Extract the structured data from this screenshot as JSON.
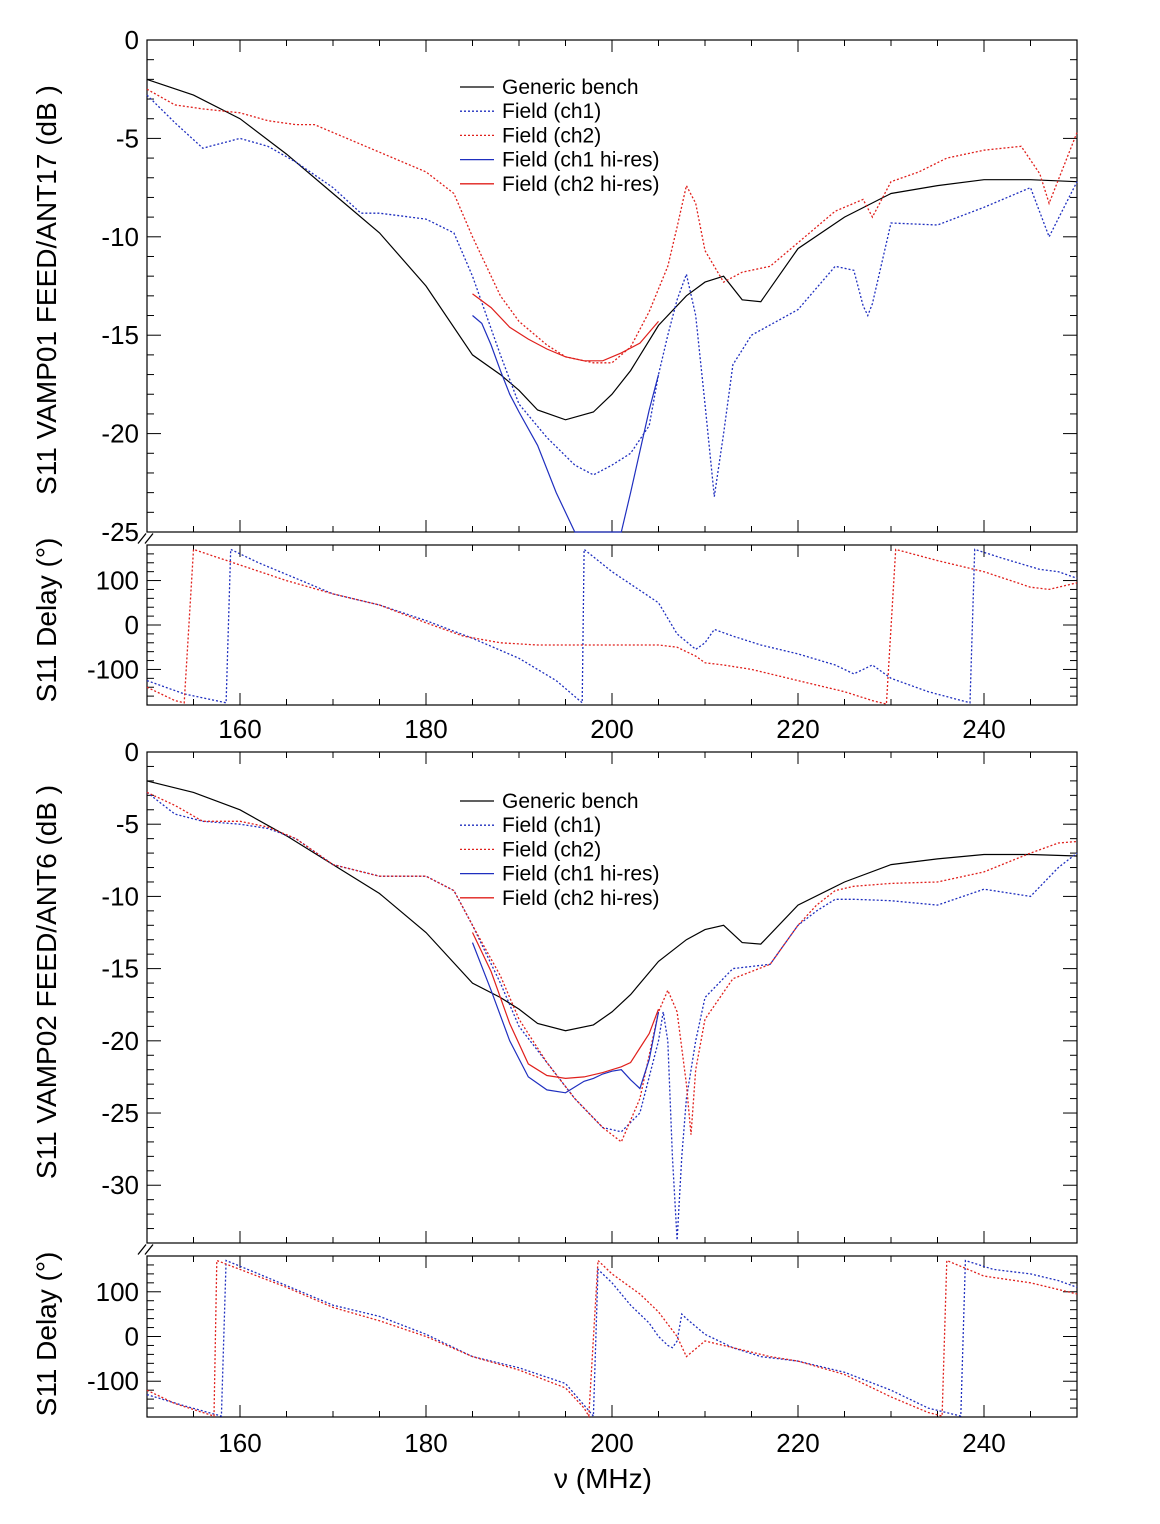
{
  "figure": {
    "xlabel": "ν (MHz)",
    "x_tick_labels": [
      "160",
      "180",
      "200",
      "220",
      "240"
    ],
    "colors": {
      "bench": "#000000",
      "ch1": "#1f2fbf",
      "ch2": "#e0201c"
    }
  },
  "chart_data": [
    {
      "type": "line",
      "panel": "top",
      "ylabel_mag": "S11 VAMP01 FEED/ANT17 (dB )",
      "ylabel_phase": "S11 Delay (°)",
      "xlim": [
        150,
        250
      ],
      "mag_ylim": [
        -25,
        0
      ],
      "mag_ticks": [
        0,
        -5,
        -10,
        -15,
        -20,
        -25
      ],
      "mag_tick_labels": [
        "0",
        "-5",
        "-10",
        "-15",
        "-20",
        "-25"
      ],
      "phase_ylim": [
        -180,
        180
      ],
      "phase_ticks": [
        100,
        0,
        -100
      ],
      "phase_tick_labels": [
        "100",
        "0",
        "-100"
      ],
      "legend": [
        "Generic bench",
        "Field (ch1)",
        "Field  (ch2)",
        "Field (ch1 hi-res)",
        "Field (ch2 hi-res)"
      ],
      "magnitude_series": [
        {
          "name": "Generic bench",
          "style": "solid",
          "color": "bench",
          "x": [
            150,
            155,
            160,
            165,
            170,
            175,
            180,
            185,
            188,
            190,
            192,
            195,
            198,
            200,
            202,
            205,
            208,
            210,
            212,
            214,
            216,
            220,
            225,
            230,
            235,
            240,
            245,
            250
          ],
          "y": [
            -2,
            -2.8,
            -4,
            -5.8,
            -7.8,
            -9.8,
            -12.5,
            -16,
            -17,
            -17.8,
            -18.8,
            -19.3,
            -18.9,
            -18,
            -16.8,
            -14.5,
            -13,
            -12.3,
            -12,
            -13.2,
            -13.3,
            -10.6,
            -9,
            -7.8,
            -7.4,
            -7.1,
            -7.1,
            -7.2
          ]
        },
        {
          "name": "Field (ch1)",
          "style": "dotted",
          "color": "ch1",
          "x": [
            150,
            153,
            156,
            160,
            163,
            166,
            170,
            173,
            175,
            180,
            183,
            185,
            188,
            190,
            193,
            196,
            198,
            200,
            202,
            204,
            205,
            206,
            207,
            208,
            209,
            210,
            211,
            212,
            213,
            215,
            220,
            224,
            226,
            227,
            227.5,
            228,
            230,
            235,
            240,
            245,
            247,
            250
          ],
          "y": [
            -2.8,
            -4.2,
            -5.5,
            -5,
            -5.4,
            -6.2,
            -7.5,
            -8.8,
            -8.8,
            -9.1,
            -9.8,
            -12,
            -16,
            -18.5,
            -20.2,
            -21.6,
            -22.1,
            -21.6,
            -21,
            -19.6,
            -17,
            -15,
            -13.2,
            -11.9,
            -14,
            -18.5,
            -23.2,
            -20,
            -16.5,
            -15,
            -13.7,
            -11.5,
            -11.7,
            -13.5,
            -14,
            -13.4,
            -9.3,
            -9.4,
            -8.5,
            -7.5,
            -10,
            -7.2
          ]
        },
        {
          "name": "Field  (ch2)",
          "style": "dotted",
          "color": "ch2",
          "x": [
            150,
            153,
            156,
            160,
            163,
            166,
            168,
            170,
            173,
            175,
            180,
            183,
            185,
            188,
            190,
            193,
            195,
            198,
            200,
            202,
            204,
            206,
            207,
            208,
            209,
            210,
            212,
            214,
            217,
            220,
            224,
            227,
            228,
            230,
            233,
            236,
            240,
            244,
            246,
            247,
            250
          ],
          "y": [
            -2.5,
            -3.3,
            -3.5,
            -3.7,
            -4.1,
            -4.3,
            -4.3,
            -4.7,
            -5.3,
            -5.7,
            -6.7,
            -7.8,
            -10,
            -13,
            -14.3,
            -15.5,
            -16.1,
            -16.4,
            -16.4,
            -15.6,
            -13.8,
            -11.5,
            -9.5,
            -7.4,
            -8.3,
            -10.7,
            -12.3,
            -11.8,
            -11.5,
            -10.3,
            -8.7,
            -8.1,
            -9,
            -7.2,
            -6.7,
            -6,
            -5.6,
            -5.4,
            -6.8,
            -8.3,
            -4.7
          ]
        },
        {
          "name": "Field (ch1 hi-res)",
          "style": "solid",
          "color": "ch1",
          "x": [
            185,
            186,
            187,
            188,
            189,
            190,
            192,
            194,
            196,
            198,
            200,
            201,
            202,
            203,
            204,
            205
          ],
          "y": [
            -14,
            -14.4,
            -15.5,
            -16.8,
            -18,
            -18.9,
            -20.6,
            -23,
            -25.2,
            -26,
            -26,
            -25.2,
            -23,
            -20.9,
            -18.8,
            -17
          ]
        },
        {
          "name": "Field (ch2 hi-res)",
          "style": "solid",
          "color": "ch2",
          "x": [
            185,
            187,
            189,
            191,
            193,
            195,
            197,
            199,
            201,
            203,
            205
          ],
          "y": [
            -12.9,
            -13.6,
            -14.6,
            -15.2,
            -15.7,
            -16.1,
            -16.3,
            -16.3,
            -15.9,
            -15.4,
            -14.3
          ]
        }
      ],
      "phase_series": [
        {
          "name": "Field (ch1)",
          "color": "ch1",
          "x": [
            150,
            154,
            158.5,
            159,
            162,
            166,
            170,
            175,
            180,
            185,
            190,
            194,
            196.8,
            197,
            200,
            205,
            207,
            209,
            210,
            211,
            213,
            216,
            220,
            224,
            226,
            228,
            230,
            234,
            238.5,
            239,
            242,
            246,
            248,
            250
          ],
          "y": [
            -125,
            -155,
            -175,
            170,
            140,
            105,
            70,
            45,
            10,
            -30,
            -75,
            -125,
            -175,
            170,
            120,
            50,
            -20,
            -55,
            -40,
            -10,
            -25,
            -45,
            -65,
            -90,
            -110,
            -90,
            -120,
            -150,
            -175,
            170,
            150,
            125,
            120,
            105
          ]
        },
        {
          "name": "Field  (ch2)",
          "color": "ch2",
          "x": [
            150,
            153,
            154,
            155,
            160,
            165,
            170,
            175,
            180,
            184,
            188,
            192,
            196,
            200,
            205,
            207,
            208,
            209,
            210,
            212,
            215,
            220,
            225,
            228,
            229.5,
            230.5,
            235,
            240,
            245,
            247,
            250
          ],
          "y": [
            -140,
            -170,
            -175,
            170,
            135,
            100,
            70,
            45,
            5,
            -25,
            -40,
            -45,
            -45,
            -45,
            -45,
            -50,
            -60,
            -70,
            -85,
            -90,
            -100,
            -125,
            -150,
            -170,
            -178,
            170,
            145,
            120,
            85,
            80,
            95
          ]
        }
      ]
    },
    {
      "type": "line",
      "panel": "bottom",
      "ylabel_mag": "S11 VAMP02 FEED/ANT6 (dB )",
      "ylabel_phase": "S11 Delay (°)",
      "xlim": [
        150,
        250
      ],
      "mag_ylim": [
        -34,
        0
      ],
      "mag_ticks": [
        0,
        -5,
        -10,
        -15,
        -20,
        -25,
        -30
      ],
      "mag_tick_labels": [
        "0",
        "-5",
        "-10",
        "-15",
        "-20",
        "-25",
        "-30"
      ],
      "phase_ylim": [
        -180,
        180
      ],
      "phase_ticks": [
        100,
        0,
        -100
      ],
      "phase_tick_labels": [
        "100",
        "0",
        "-100"
      ],
      "legend": [
        "Generic bench",
        "Field (ch1)",
        "Field  (ch2)",
        "Field (ch1 hi-res)",
        "Field (ch2 hi-res)"
      ],
      "magnitude_series": [
        {
          "name": "Generic bench",
          "style": "solid",
          "color": "bench",
          "x": [
            150,
            155,
            160,
            165,
            170,
            175,
            180,
            185,
            188,
            190,
            192,
            195,
            198,
            200,
            202,
            205,
            208,
            210,
            212,
            214,
            216,
            220,
            225,
            230,
            235,
            240,
            245,
            250
          ],
          "y": [
            -2,
            -2.8,
            -4,
            -5.8,
            -7.8,
            -9.8,
            -12.5,
            -16,
            -17,
            -17.8,
            -18.8,
            -19.3,
            -18.9,
            -18,
            -16.8,
            -14.5,
            -13,
            -12.3,
            -12,
            -13.2,
            -13.3,
            -10.6,
            -9,
            -7.8,
            -7.4,
            -7.1,
            -7.1,
            -7.2
          ]
        },
        {
          "name": "Field (ch1)",
          "style": "dotted",
          "color": "ch1",
          "x": [
            150,
            153,
            156,
            160,
            163,
            166,
            170,
            175,
            180,
            183,
            185,
            188,
            190,
            193,
            196,
            199,
            201,
            203,
            205,
            205.5,
            206,
            206.5,
            207,
            207.5,
            208,
            209,
            210,
            213,
            217,
            220,
            222,
            224,
            226,
            230,
            235,
            240,
            245,
            248,
            250
          ],
          "y": [
            -2.8,
            -4.3,
            -4.8,
            -5,
            -5.3,
            -6,
            -7.8,
            -8.6,
            -8.6,
            -9.6,
            -12,
            -16,
            -19,
            -21.5,
            -24,
            -26,
            -26.3,
            -25,
            -20,
            -18,
            -20,
            -28,
            -33.8,
            -28,
            -24,
            -20,
            -17,
            -15,
            -14.7,
            -12,
            -11,
            -10.2,
            -10.2,
            -10.3,
            -10.6,
            -9.5,
            -10,
            -8,
            -7
          ]
        },
        {
          "name": "Field  (ch2)",
          "style": "dotted",
          "color": "ch2",
          "x": [
            150,
            153,
            156,
            160,
            163,
            166,
            170,
            175,
            180,
            183,
            185,
            188,
            190,
            193,
            196,
            199,
            201,
            203,
            204,
            205,
            206,
            207,
            208,
            208.5,
            209,
            210,
            213,
            217,
            220,
            222,
            224,
            226,
            230,
            235,
            240,
            245,
            248,
            250
          ],
          "y": [
            -2.8,
            -3.7,
            -4.8,
            -4.8,
            -5.2,
            -6,
            -7.8,
            -8.6,
            -8.6,
            -9.6,
            -12,
            -15.5,
            -18.5,
            -21.5,
            -24,
            -26,
            -27,
            -24,
            -21,
            -18,
            -16.5,
            -18,
            -23,
            -26.5,
            -22,
            -18.5,
            -15.7,
            -14.7,
            -12,
            -10.6,
            -9.6,
            -9.3,
            -9.1,
            -9,
            -8.3,
            -7,
            -6.3,
            -6.2
          ]
        },
        {
          "name": "Field (ch1 hi-res)",
          "style": "solid",
          "color": "ch1",
          "x": [
            185,
            187,
            189,
            191,
            193,
            195,
            196,
            197,
            198,
            199,
            200,
            201,
            202,
            203,
            204,
            205
          ],
          "y": [
            -13.2,
            -16.5,
            -20,
            -22.5,
            -23.4,
            -23.6,
            -23.2,
            -22.8,
            -22.6,
            -22.3,
            -22.1,
            -22,
            -22.7,
            -23.3,
            -21.3,
            -18
          ]
        },
        {
          "name": "Field (ch2 hi-res)",
          "style": "solid",
          "color": "ch2",
          "x": [
            185,
            187,
            189,
            191,
            193,
            195,
            197,
            199,
            201,
            202,
            203,
            204,
            205
          ],
          "y": [
            -12.5,
            -15.2,
            -18.8,
            -21.6,
            -22.4,
            -22.6,
            -22.5,
            -22.2,
            -21.8,
            -21.5,
            -20.5,
            -19.5,
            -17.8
          ]
        }
      ],
      "phase_series": [
        {
          "name": "Field (ch1)",
          "color": "ch1",
          "x": [
            150,
            154,
            158,
            158.5,
            162,
            166,
            170,
            175,
            180,
            185,
            190,
            195,
            198,
            198.5,
            200,
            202,
            204,
            205,
            206,
            206.5,
            207,
            207.5,
            208,
            210,
            213,
            216,
            220,
            225,
            230,
            234,
            237.5,
            238,
            241,
            245,
            248,
            250
          ],
          "y": [
            -130,
            -155,
            -178,
            170,
            140,
            105,
            70,
            45,
            5,
            -45,
            -70,
            -105,
            -178,
            150,
            120,
            70,
            30,
            0,
            -20,
            -25,
            -10,
            50,
            40,
            5,
            -25,
            -45,
            -55,
            -80,
            -120,
            -160,
            -178,
            170,
            150,
            140,
            125,
            110
          ]
        },
        {
          "name": "Field  (ch2)",
          "color": "ch2",
          "x": [
            150,
            153,
            156,
            157.2,
            157.5,
            160,
            165,
            170,
            175,
            180,
            185,
            190,
            195,
            197,
            197.5,
            198.5,
            200,
            203,
            205,
            207,
            208,
            210,
            213,
            217,
            220,
            225,
            230,
            234,
            235.5,
            236,
            240,
            245,
            250
          ],
          "y": [
            -120,
            -150,
            -170,
            -178,
            170,
            150,
            110,
            65,
            35,
            0,
            -45,
            -75,
            -115,
            -160,
            -178,
            170,
            140,
            95,
            55,
            0,
            -45,
            -10,
            -25,
            -45,
            -55,
            -85,
            -135,
            -170,
            -178,
            170,
            135,
            120,
            95
          ]
        }
      ]
    }
  ]
}
